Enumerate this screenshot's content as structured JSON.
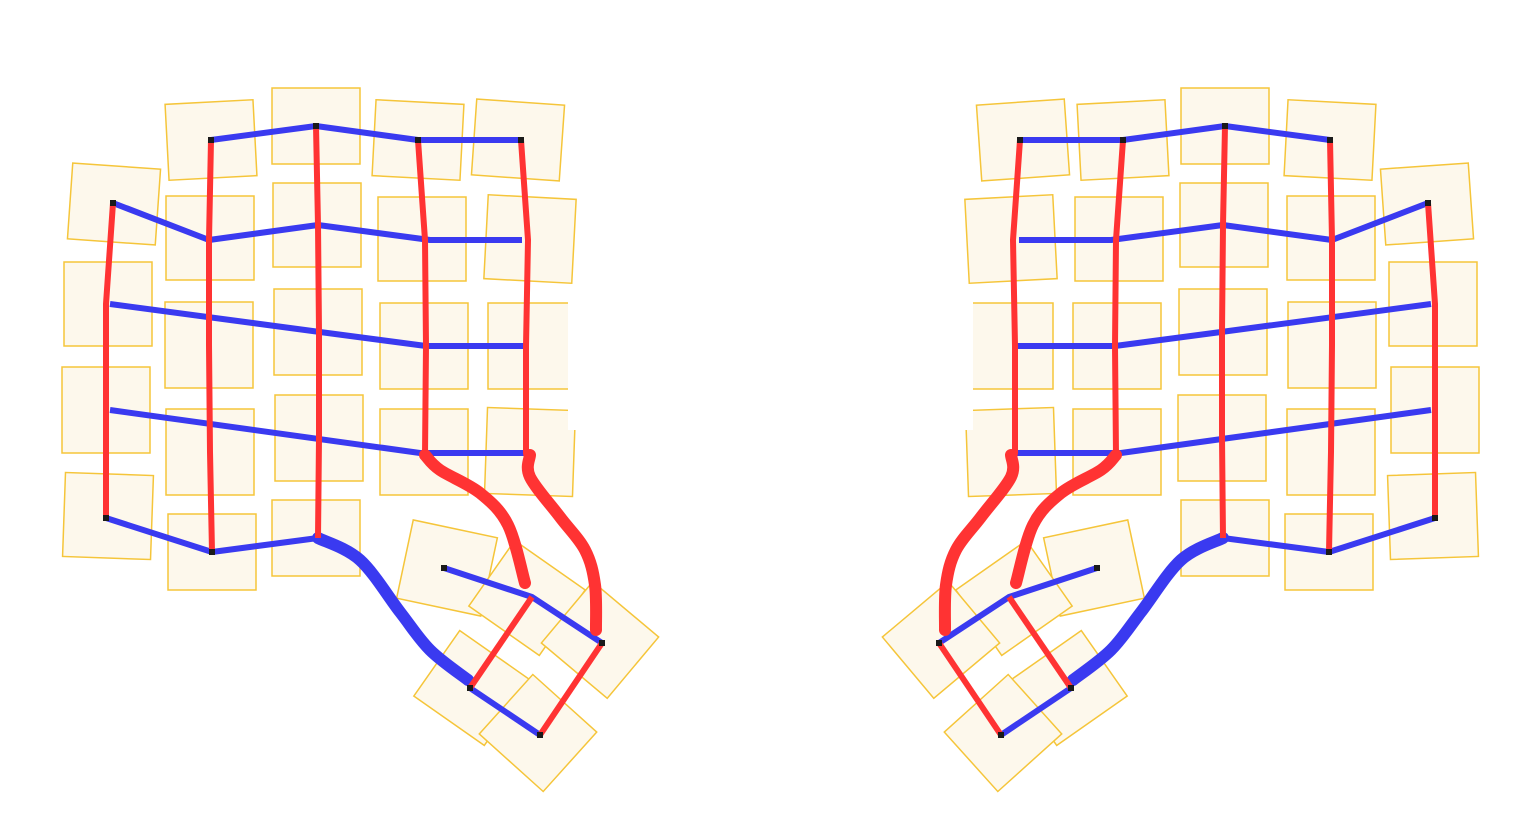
{
  "diagram": {
    "kind": "split-keyboard-wiring-matrix",
    "halves": [
      "left",
      "right"
    ],
    "colors": {
      "row_wire": "#3a3af0",
      "column_wire": "#ff3333",
      "key_fill": "#fdf8ec",
      "key_outline": "#f5c53a",
      "node": "#1a1a1a",
      "background": "#ffffff"
    },
    "legend": []
  }
}
